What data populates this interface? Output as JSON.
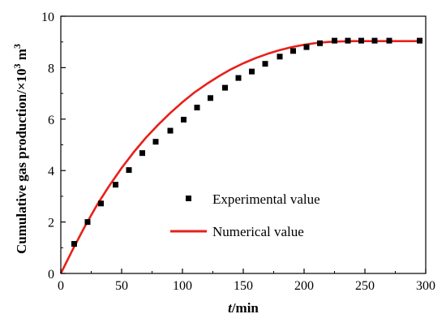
{
  "chart_data": {
    "type": "scatter",
    "xlim": [
      0,
      300
    ],
    "ylim": [
      0,
      10
    ],
    "xticks": [
      0,
      50,
      100,
      150,
      200,
      250,
      300
    ],
    "yticks": [
      0,
      2,
      4,
      6,
      8,
      10
    ],
    "xlabel": {
      "italic": "t",
      "rest": "/min"
    },
    "ylabel": {
      "base": "Cumulative gas production/×10",
      "exp1": "3",
      "mid": " m",
      "exp2": "3"
    },
    "legend_position": "center-right",
    "grid": false,
    "series": [
      {
        "name": "Experimental value",
        "kind": "markers",
        "marker": "square",
        "color": "#000000",
        "x": [
          11,
          22,
          33,
          45,
          56,
          67,
          78,
          90,
          101,
          112,
          123,
          135,
          146,
          157,
          168,
          180,
          191,
          202,
          213,
          225,
          236,
          247,
          258,
          270,
          295
        ],
        "y": [
          1.15,
          2.0,
          2.72,
          3.45,
          4.02,
          4.68,
          5.12,
          5.55,
          5.98,
          6.45,
          6.82,
          7.22,
          7.6,
          7.85,
          8.15,
          8.43,
          8.65,
          8.8,
          8.95,
          9.05,
          9.05,
          9.05,
          9.05,
          9.05,
          9.05
        ]
      },
      {
        "name": "Numerical value",
        "kind": "line",
        "color": "#e8201a",
        "x": [
          0,
          10,
          20,
          30,
          40,
          50,
          60,
          70,
          80,
          90,
          100,
          110,
          120,
          130,
          140,
          150,
          160,
          170,
          180,
          190,
          200,
          210,
          220,
          230,
          240,
          250,
          260,
          270,
          280,
          290,
          295
        ],
        "y": [
          0,
          0.95,
          1.85,
          2.68,
          3.42,
          4.1,
          4.72,
          5.28,
          5.78,
          6.24,
          6.66,
          7.04,
          7.37,
          7.67,
          7.94,
          8.17,
          8.37,
          8.54,
          8.68,
          8.8,
          8.89,
          8.96,
          9.0,
          9.02,
          9.03,
          9.03,
          9.03,
          9.03,
          9.03,
          9.03,
          9.03
        ]
      }
    ]
  }
}
